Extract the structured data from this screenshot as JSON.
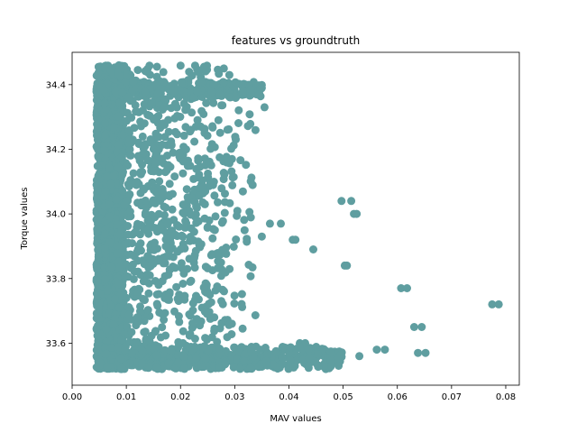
{
  "chart_data": {
    "type": "scatter",
    "title": "features vs groundtruth",
    "xlabel": "MAV values",
    "ylabel": "Torque values",
    "xlim": [
      0.0,
      0.0825
    ],
    "ylim": [
      33.47,
      34.5
    ],
    "xticks": [
      0.0,
      0.01,
      0.02,
      0.03,
      0.04,
      0.05,
      0.06,
      0.07,
      0.08
    ],
    "xtick_labels": [
      "0.00",
      "0.01",
      "0.02",
      "0.03",
      "0.04",
      "0.05",
      "0.06",
      "0.07",
      "0.08"
    ],
    "yticks": [
      33.6,
      33.8,
      34.0,
      34.2,
      34.4
    ],
    "ytick_labels": [
      "33.6",
      "33.8",
      "34.0",
      "34.2",
      "34.4"
    ],
    "grid": false,
    "color": "#5f9ea0",
    "series": [
      {
        "x": [
          0.0775,
          0.0787,
          0.0607,
          0.0618,
          0.0631,
          0.0645,
          0.0638,
          0.0652,
          0.0562,
          0.0577,
          0.053,
          0.0503,
          0.0507,
          0.0445,
          0.0407,
          0.0412,
          0.0497,
          0.0515,
          0.052,
          0.0525,
          0.0385,
          0.0365,
          0.035,
          0.0375,
          0.034,
          0.042,
          0.043,
          0.028,
          0.029,
          0.032,
          0.033,
          0.03,
          0.031,
          0.027,
          0.0255,
          0.0245,
          0.035,
          0.0355
        ],
        "y": [
          33.72,
          33.72,
          33.77,
          33.77,
          33.65,
          33.65,
          33.57,
          33.57,
          33.58,
          33.58,
          33.56,
          33.84,
          33.84,
          33.89,
          33.92,
          33.92,
          34.04,
          34.04,
          34.0,
          34.0,
          33.97,
          33.97,
          33.93,
          33.56,
          34.37,
          33.6,
          33.6,
          34.45,
          34.43,
          34.4,
          34.38,
          34.38,
          34.37,
          34.29,
          34.1,
          34.03,
          34.39,
          34.33
        ]
      }
    ]
  }
}
